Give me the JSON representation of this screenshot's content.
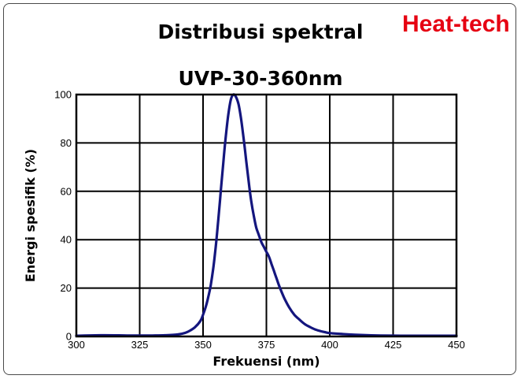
{
  "brand": {
    "name": "Heat-tech",
    "color": "#e60012"
  },
  "chart_data": {
    "type": "line",
    "title": "Distribusi spektral",
    "subtitle": "UVP-30-360nm",
    "xlabel": "Frekuensi (nm)",
    "ylabel": "Energi spesifik (%)",
    "xlim": [
      300,
      450
    ],
    "ylim": [
      0,
      100
    ],
    "xticks": [
      300,
      325,
      350,
      375,
      400,
      425,
      450
    ],
    "yticks": [
      0,
      20,
      40,
      60,
      80,
      100
    ],
    "grid": true,
    "line_color": "#14167e",
    "series": [
      {
        "x": [
          300,
          310,
          320,
          330,
          335,
          340,
          343,
          345,
          347,
          349,
          350,
          351,
          352,
          353,
          354,
          355,
          356,
          357,
          358,
          359,
          360,
          361,
          362,
          363,
          364,
          365,
          366,
          367,
          368,
          369,
          370,
          371,
          372,
          373,
          374,
          375,
          376,
          377,
          378,
          379,
          380,
          382,
          384,
          386,
          388,
          390,
          392,
          394,
          396,
          398,
          400,
          405,
          410,
          420,
          430,
          440,
          450
        ],
        "y": [
          0.3,
          0.5,
          0.4,
          0.4,
          0.5,
          0.8,
          1.5,
          2.5,
          4,
          6.5,
          9,
          12,
          16,
          21,
          28,
          37,
          48,
          60,
          72,
          83,
          92,
          98,
          100,
          99,
          96,
          90,
          82,
          73,
          64,
          56,
          50,
          45,
          42,
          39,
          37,
          35,
          33,
          30,
          27,
          24,
          21,
          16,
          12,
          9,
          7,
          5.2,
          4,
          3,
          2.3,
          1.8,
          1.4,
          1,
          0.7,
          0.4,
          0.3,
          0.3,
          0.3
        ]
      }
    ]
  }
}
